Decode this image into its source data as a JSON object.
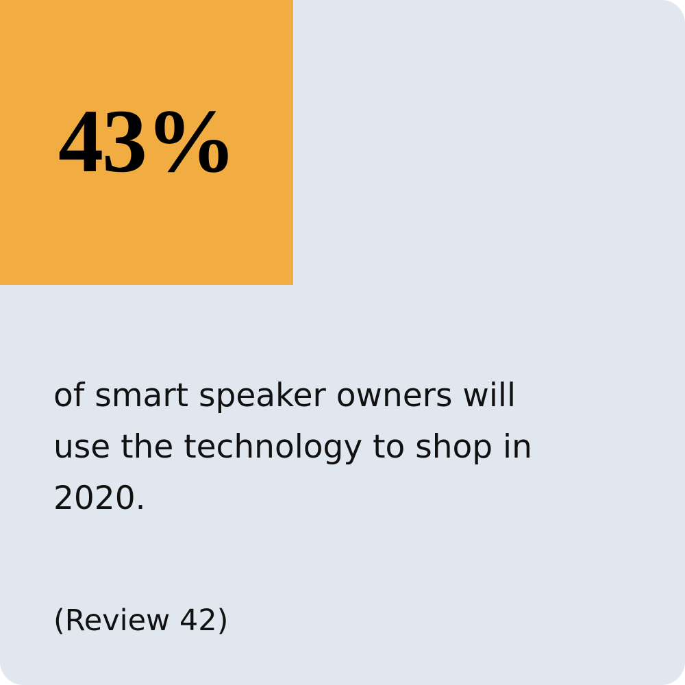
{
  "stat": {
    "value": "43%",
    "description_lines": [
      "of smart speaker owners will",
      "use the technology to shop in",
      "2020."
    ],
    "source": "(Review 42)"
  }
}
